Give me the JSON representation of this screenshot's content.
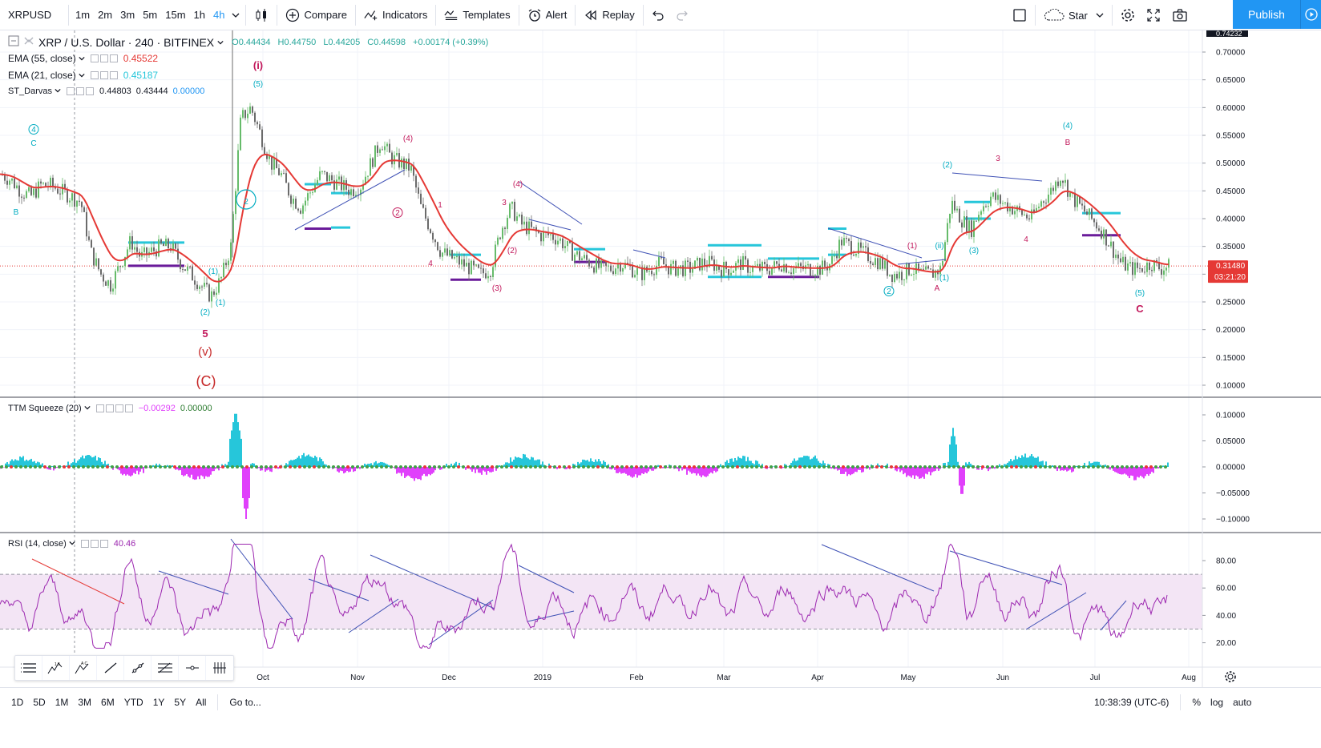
{
  "toolbar": {
    "symbol": "XRPUSD",
    "intervals": [
      "1m",
      "2m",
      "3m",
      "5m",
      "15m",
      "1h",
      "4h"
    ],
    "active_interval": "4h",
    "compare_label": "Compare",
    "indicators_label": "Indicators",
    "templates_label": "Templates",
    "alert_label": "Alert",
    "replay_label": "Replay",
    "star_label": "Star",
    "publish_label": "Publish"
  },
  "legend": {
    "title": "XRP / U.S. Dollar · 240 · BITFINEX",
    "open": "O0.44434",
    "high": "H0.44750",
    "low": "L0.44205",
    "close": "C0.44598",
    "change": "+0.00174 (+0.39%)",
    "ema55_name": "EMA (55, close)",
    "ema55_value": "0.45522",
    "ema21_name": "EMA (21, close)",
    "ema21_value": "0.45187",
    "darvas_name": "ST_Darvas",
    "darvas_v1": "0.44803",
    "darvas_v2": "0.43444",
    "darvas_v3": "0.00000",
    "ttm_name": "TTM Squeeze (20)",
    "ttm_v1": "−0.00292",
    "ttm_v2": "0.00000",
    "rsi_name": "RSI (14, close)",
    "rsi_value": "40.46"
  },
  "price_axis": {
    "ticks": [
      "0.70000",
      "0.65000",
      "0.60000",
      "0.55000",
      "0.50000",
      "0.45000",
      "0.40000",
      "0.35000",
      "0.30000",
      "0.25000",
      "0.20000",
      "0.15000",
      "0.10000"
    ],
    "top_partial": "0.74232",
    "current_price": "0.31480",
    "countdown": "03:21:20"
  },
  "ttm_axis": {
    "ticks": [
      "0.10000",
      "0.05000",
      "0.00000",
      "−0.05000",
      "−0.10000"
    ]
  },
  "rsi_axis": {
    "ticks": [
      "80.00",
      "60.00",
      "40.00",
      "20.00"
    ]
  },
  "time_axis": {
    "labels": [
      "Oct",
      "Nov",
      "Dec",
      "2019",
      "Feb",
      "Mar",
      "Apr",
      "May",
      "Jun",
      "Jul",
      "Aug"
    ]
  },
  "wave_labels": [
    "(i)",
    "(5)",
    "(1)",
    "4",
    "C",
    "B",
    "(1)",
    "(2)",
    "5",
    "(v)",
    "(C)",
    "2",
    "(4)",
    "2",
    "1",
    "4",
    "3",
    "(3)",
    "(2)",
    "(4)",
    "(1)",
    "(1)",
    "2",
    "A",
    "(2)",
    "3",
    "(3)",
    "4",
    "(4)",
    "B",
    "(5)",
    "C",
    "(ii)",
    "1"
  ],
  "bottom": {
    "ranges": [
      "1D",
      "5D",
      "1M",
      "3M",
      "6M",
      "YTD",
      "1Y",
      "5Y",
      "All"
    ],
    "goto": "Go to...",
    "clock": "10:38:39 (UTC-6)",
    "percent": "%",
    "log": "log",
    "auto": "auto"
  },
  "colors": {
    "accent": "#2196f3",
    "ema": "#e53935",
    "darvas": "#26c6da",
    "darvas_low": "#6a1b9a",
    "rsi": "#9c27b0",
    "rsi_band": "#f3e5f5",
    "squeeze_up": "#26c6da",
    "squeeze_down": "#e040fb",
    "wave_magenta": "#c2185b",
    "wave_cyan": "#00acc1",
    "trendline": "#3f51b5",
    "up_candle": "#66bb6a",
    "down_candle": "#6b6b6b"
  },
  "chart_data": {
    "type": "line",
    "series": [
      {
        "values": [
          0.48,
          0.47,
          0.45,
          0.44,
          0.46,
          0.46,
          0.45,
          0.44,
          0.43,
          0.34,
          0.3,
          0.28,
          0.32,
          0.36,
          0.33,
          0.34,
          0.35,
          0.35,
          0.32,
          0.3,
          0.28,
          0.26,
          0.29,
          0.35,
          0.58,
          0.6,
          0.55,
          0.5,
          0.48,
          0.44,
          0.42,
          0.45,
          0.48,
          0.47,
          0.46,
          0.45,
          0.46,
          0.5,
          0.54,
          0.51,
          0.5,
          0.49,
          0.42,
          0.38,
          0.34,
          0.33,
          0.32,
          0.31,
          0.3,
          0.31,
          0.38,
          0.42,
          0.39,
          0.38,
          0.37,
          0.37,
          0.36,
          0.34,
          0.33,
          0.32,
          0.31,
          0.31,
          0.32,
          0.31,
          0.3,
          0.31,
          0.32,
          0.31,
          0.31,
          0.31,
          0.32,
          0.32,
          0.31,
          0.31,
          0.32,
          0.31,
          0.31,
          0.31,
          0.32,
          0.31,
          0.31,
          0.31,
          0.31,
          0.32,
          0.36,
          0.35,
          0.34,
          0.33,
          0.32,
          0.3,
          0.3,
          0.31,
          0.3,
          0.3,
          0.31,
          0.43,
          0.4,
          0.38,
          0.42,
          0.44,
          0.43,
          0.42,
          0.41,
          0.4,
          0.43,
          0.45,
          0.48,
          0.44,
          0.42,
          0.4,
          0.38,
          0.35,
          0.32,
          0.31,
          0.31,
          0.32,
          0.31,
          0.315
        ]
      }
    ],
    "ylim": [
      0.1,
      0.74
    ]
  }
}
